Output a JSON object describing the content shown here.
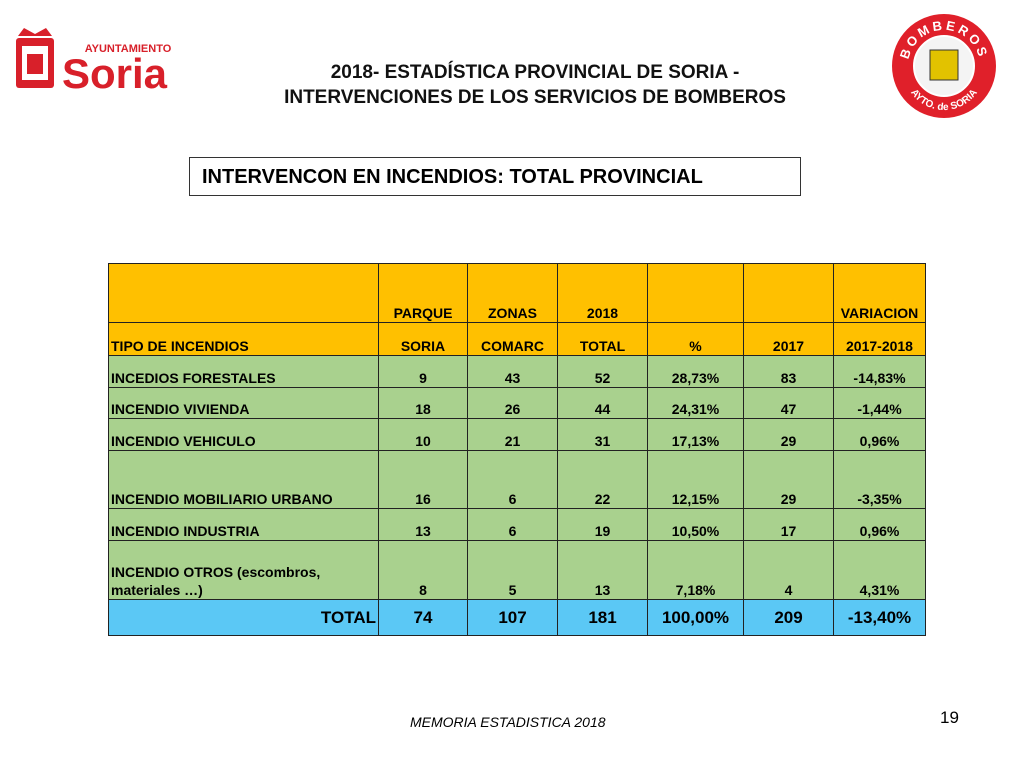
{
  "header": {
    "logo_left": {
      "small": "AYUNTAMIENTO",
      "big": "Soria"
    },
    "title_lines": [
      "2018- ESTADÍSTICA PROVINCIAL DE SORIA -",
      "INTERVENCIONES DE LOS SERVICIOS DE BOMBEROS"
    ],
    "logo_right": {
      "top": "BOMBEROS",
      "bottom": "AYTO. de SORIA"
    }
  },
  "section_title": "INTERVENCON EN INCENDIOS:  TOTAL PROVINCIAL",
  "table": {
    "header_rows": [
      [
        null,
        "PARQUE",
        "ZONAS",
        "2018",
        null,
        null,
        "VARIACION"
      ],
      [
        "TIPO DE INCENDIOS",
        "SORIA",
        "COMARC",
        "TOTAL",
        "%",
        "2017",
        "2017-2018"
      ]
    ],
    "rows": [
      [
        "INCEDIOS FORESTALES",
        "9",
        "43",
        "52",
        "28,73%",
        "83",
        "-14,83%"
      ],
      [
        "INCENDIO VIVIENDA",
        "18",
        "26",
        "44",
        "24,31%",
        "47",
        "-1,44%"
      ],
      [
        "INCENDIO VEHICULO",
        "10",
        "21",
        "31",
        "17,13%",
        "29",
        "0,96%"
      ],
      [
        "INCENDIO MOBILIARIO URBANO",
        "16",
        "6",
        "22",
        "12,15%",
        "29",
        "-3,35%"
      ],
      [
        "INCENDIO INDUSTRIA",
        "13",
        "6",
        "19",
        "10,50%",
        "17",
        "0,96%"
      ],
      [
        "INCENDIO OTROS (escombros, materiales …)",
        "8",
        "5",
        "13",
        "7,18%",
        "4",
        "4,31%"
      ]
    ],
    "total_row": [
      "TOTAL",
      "74",
      "107",
      "181",
      "100,00%",
      "209",
      "-13,40%"
    ]
  },
  "footer": {
    "text": "MEMORIA ESTADISTICA 2018",
    "page": "19"
  }
}
